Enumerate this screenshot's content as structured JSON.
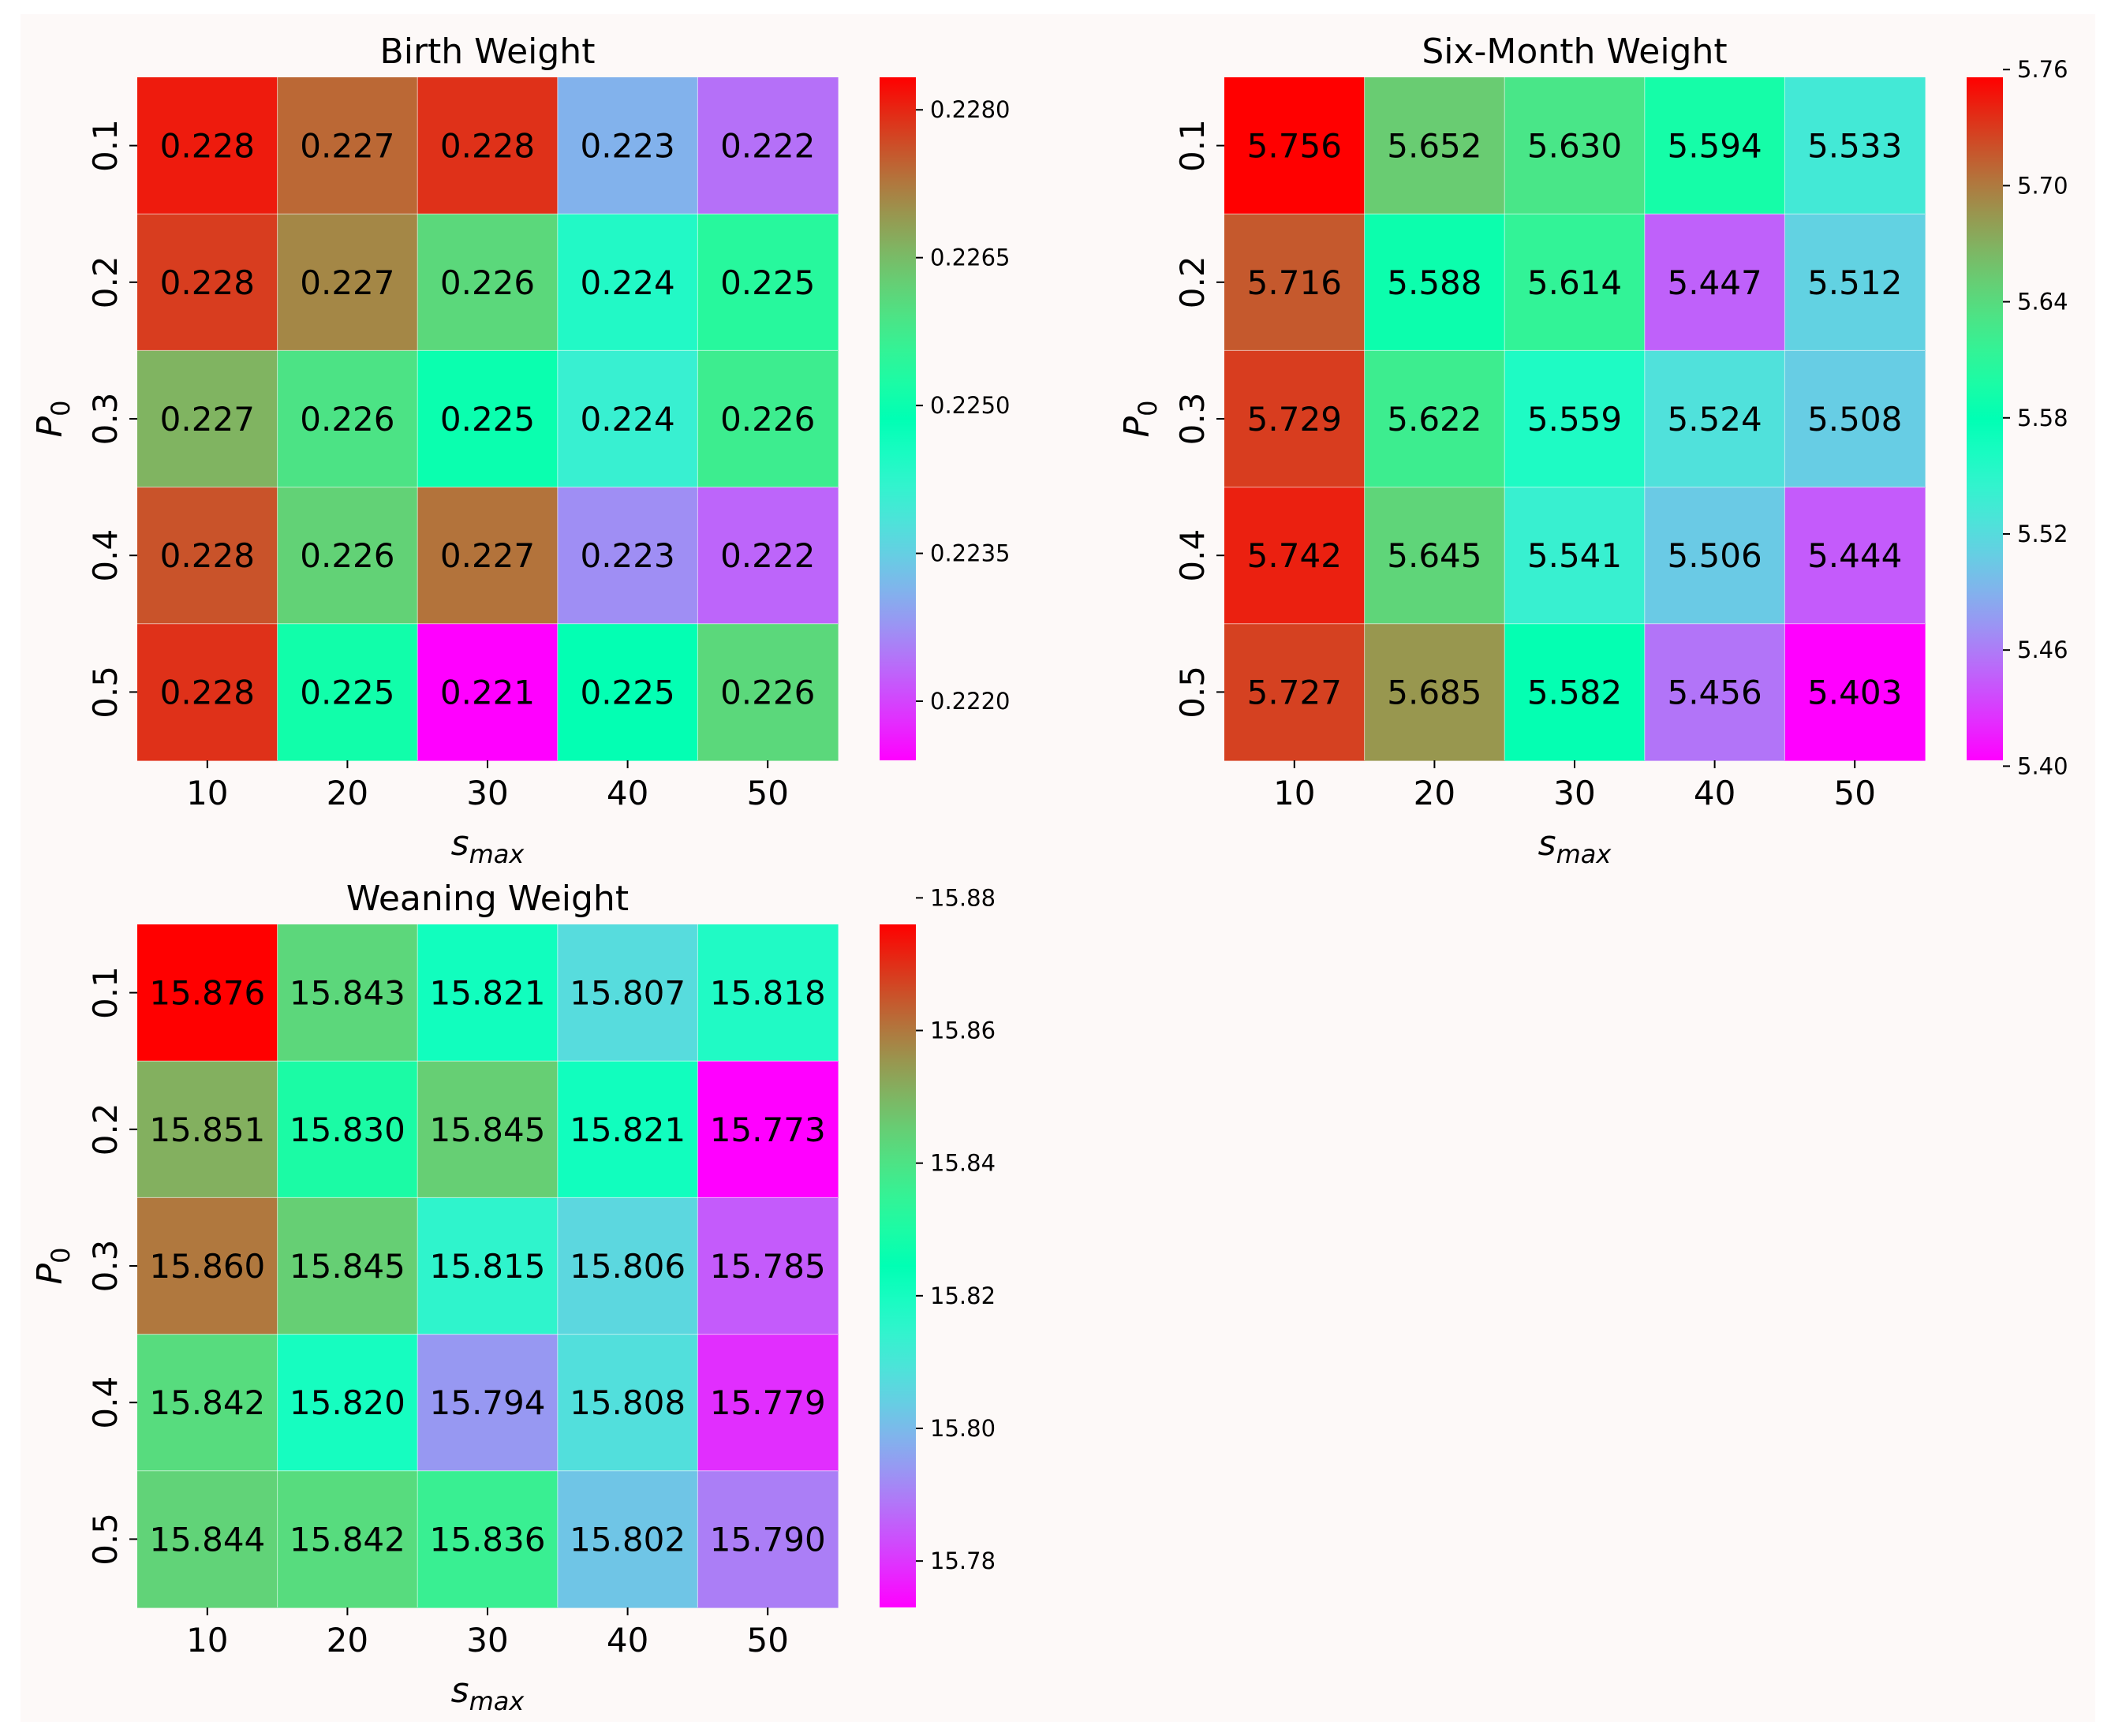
{
  "colors": {
    "figure_background": "#fdf9f8",
    "text": "#000000",
    "colormap": "rainbow"
  },
  "chart_data": [
    {
      "type": "heatmap",
      "title": "Birth Weight",
      "xlabel": "s",
      "xlabel_subscript": "max",
      "ylabel": "P",
      "ylabel_subscript": "0",
      "x_categories": [
        "10",
        "20",
        "30",
        "40",
        "50"
      ],
      "y_categories": [
        "0.1",
        "0.2",
        "0.3",
        "0.4",
        "0.5"
      ],
      "values": [
        [
          0.2281,
          0.2274,
          0.2279,
          0.2231,
          0.2224
        ],
        [
          0.2278,
          0.2271,
          0.2261,
          0.2244,
          0.2254
        ],
        [
          0.2266,
          0.2259,
          0.225,
          0.2241,
          0.2257
        ],
        [
          0.2276,
          0.2262,
          0.2273,
          0.2227,
          0.2223
        ],
        [
          0.2279,
          0.2251,
          0.2214,
          0.2249,
          0.2261
        ]
      ],
      "annotations": [
        [
          "0.228",
          "0.227",
          "0.228",
          "0.223",
          "0.222"
        ],
        [
          "0.228",
          "0.227",
          "0.226",
          "0.224",
          "0.225"
        ],
        [
          "0.227",
          "0.226",
          "0.225",
          "0.224",
          "0.226"
        ],
        [
          "0.228",
          "0.226",
          "0.227",
          "0.223",
          "0.222"
        ],
        [
          "0.228",
          "0.225",
          "0.221",
          "0.225",
          "0.226"
        ]
      ],
      "color_range": [
        0.2214,
        0.22833
      ],
      "colorbar_ticks": [
        {
          "value": 0.222,
          "label": "0.2220"
        },
        {
          "value": 0.2235,
          "label": "0.2235"
        },
        {
          "value": 0.225,
          "label": "0.2250"
        },
        {
          "value": 0.2265,
          "label": "0.2265"
        },
        {
          "value": 0.228,
          "label": "0.2280"
        }
      ]
    },
    {
      "type": "heatmap",
      "title": "Six-Month Weight",
      "xlabel": "s",
      "xlabel_subscript": "max",
      "ylabel": "P",
      "ylabel_subscript": "0",
      "x_categories": [
        "10",
        "20",
        "30",
        "40",
        "50"
      ],
      "y_categories": [
        "0.1",
        "0.2",
        "0.3",
        "0.4",
        "0.5"
      ],
      "values": [
        [
          5.756,
          5.652,
          5.63,
          5.594,
          5.533
        ],
        [
          5.716,
          5.588,
          5.614,
          5.447,
          5.512
        ],
        [
          5.729,
          5.622,
          5.559,
          5.524,
          5.508
        ],
        [
          5.742,
          5.645,
          5.541,
          5.506,
          5.444
        ],
        [
          5.727,
          5.685,
          5.582,
          5.456,
          5.403
        ]
      ],
      "annotations": [
        [
          "5.756",
          "5.652",
          "5.630",
          "5.594",
          "5.533"
        ],
        [
          "5.716",
          "5.588",
          "5.614",
          "5.447",
          "5.512"
        ],
        [
          "5.729",
          "5.622",
          "5.559",
          "5.524",
          "5.508"
        ],
        [
          "5.742",
          "5.645",
          "5.541",
          "5.506",
          "5.444"
        ],
        [
          "5.727",
          "5.685",
          "5.582",
          "5.456",
          "5.403"
        ]
      ],
      "color_range": [
        5.403,
        5.756
      ],
      "colorbar_ticks": [
        {
          "value": 5.4,
          "label": "5.40"
        },
        {
          "value": 5.46,
          "label": "5.46"
        },
        {
          "value": 5.52,
          "label": "5.52"
        },
        {
          "value": 5.58,
          "label": "5.58"
        },
        {
          "value": 5.64,
          "label": "5.64"
        },
        {
          "value": 5.7,
          "label": "5.70"
        },
        {
          "value": 5.76,
          "label": "5.76"
        }
      ]
    },
    {
      "type": "heatmap",
      "title": "Weaning Weight",
      "xlabel": "s",
      "xlabel_subscript": "max",
      "ylabel": "P",
      "ylabel_subscript": "0",
      "x_categories": [
        "10",
        "20",
        "30",
        "40",
        "50"
      ],
      "y_categories": [
        "0.1",
        "0.2",
        "0.3",
        "0.4",
        "0.5"
      ],
      "values": [
        [
          15.876,
          15.843,
          15.821,
          15.807,
          15.818
        ],
        [
          15.851,
          15.83,
          15.845,
          15.821,
          15.773
        ],
        [
          15.86,
          15.845,
          15.815,
          15.806,
          15.785
        ],
        [
          15.842,
          15.82,
          15.794,
          15.808,
          15.779
        ],
        [
          15.844,
          15.842,
          15.836,
          15.802,
          15.79
        ]
      ],
      "annotations": [
        [
          "15.876",
          "15.843",
          "15.821",
          "15.807",
          "15.818"
        ],
        [
          "15.851",
          "15.830",
          "15.845",
          "15.821",
          "15.773"
        ],
        [
          "15.860",
          "15.845",
          "15.815",
          "15.806",
          "15.785"
        ],
        [
          "15.842",
          "15.820",
          "15.794",
          "15.808",
          "15.779"
        ],
        [
          "15.844",
          "15.842",
          "15.836",
          "15.802",
          "15.790"
        ]
      ],
      "color_range": [
        15.773,
        15.876
      ],
      "colorbar_ticks": [
        {
          "value": 15.78,
          "label": "15.78"
        },
        {
          "value": 15.8,
          "label": "15.80"
        },
        {
          "value": 15.82,
          "label": "15.82"
        },
        {
          "value": 15.84,
          "label": "15.84"
        },
        {
          "value": 15.86,
          "label": "15.86"
        },
        {
          "value": 15.88,
          "label": "15.88"
        }
      ]
    }
  ]
}
